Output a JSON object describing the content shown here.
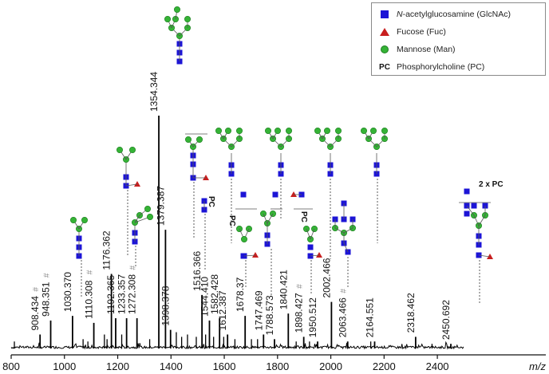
{
  "chart_data": {
    "type": "line",
    "xlabel": "m/z",
    "ylabel": "",
    "xlim": [
      800,
      2500
    ],
    "ylim": [
      0,
      100
    ],
    "x_ticks": [
      800,
      1000,
      1200,
      1400,
      1600,
      1800,
      2000,
      2200,
      2400
    ],
    "peaks": [
      {
        "mz": 908.434,
        "label": "908.434",
        "intensity": 6,
        "marker": "#"
      },
      {
        "mz": 948.351,
        "label": "948.351",
        "intensity": 12,
        "marker": "#"
      },
      {
        "mz": 1030.37,
        "label": "1030.370",
        "intensity": 14,
        "marker": ""
      },
      {
        "mz": 1110.308,
        "label": "1110.308",
        "intensity": 11,
        "marker": "#"
      },
      {
        "mz": 1176.362,
        "label": "1176.362",
        "intensity": 32,
        "marker": ""
      },
      {
        "mz": 1192.365,
        "label": "1192.365",
        "intensity": 13,
        "marker": ""
      },
      {
        "mz": 1233.357,
        "label": "1233.357",
        "intensity": 13,
        "marker": ""
      },
      {
        "mz": 1272.308,
        "label": "1272.308",
        "intensity": 13,
        "marker": "#"
      },
      {
        "mz": 1354.344,
        "label": "1354.344",
        "intensity": 100,
        "marker": ""
      },
      {
        "mz": 1379.387,
        "label": "1379.387",
        "intensity": 51,
        "marker": ""
      },
      {
        "mz": 1398.378,
        "label": "1398.378",
        "intensity": 8,
        "marker": ""
      },
      {
        "mz": 1516.366,
        "label": "1516.366",
        "intensity": 23,
        "marker": ""
      },
      {
        "mz": 1544.41,
        "label": "1544.410",
        "intensity": 12,
        "marker": ""
      },
      {
        "mz": 1582.428,
        "label": "1582.428",
        "intensity": 13,
        "marker": ""
      },
      {
        "mz": 1612.387,
        "label": "1612.387",
        "intensity": 6,
        "marker": ""
      },
      {
        "mz": 1678.37,
        "label": "1678.37",
        "intensity": 14,
        "marker": ""
      },
      {
        "mz": 1747.469,
        "label": "1747.469",
        "intensity": 6,
        "marker": ""
      },
      {
        "mz": 1788.573,
        "label": "1788.573",
        "intensity": 4,
        "marker": ""
      },
      {
        "mz": 1840.421,
        "label": "1840.421",
        "intensity": 15,
        "marker": ""
      },
      {
        "mz": 1898.427,
        "label": "1898.427",
        "intensity": 5,
        "marker": "#"
      },
      {
        "mz": 1950.512,
        "label": "1950.512",
        "intensity": 3,
        "marker": ""
      },
      {
        "mz": 2002.466,
        "label": "2002.466",
        "intensity": 20,
        "marker": ""
      },
      {
        "mz": 2063.466,
        "label": "2063.466",
        "intensity": 3,
        "marker": "#"
      },
      {
        "mz": 2164.551,
        "label": "2164.551",
        "intensity": 3,
        "marker": ""
      },
      {
        "mz": 2318.462,
        "label": "2318.462",
        "intensity": 5,
        "marker": ""
      },
      {
        "mz": 2450.692,
        "label": "2450.692",
        "intensity": 2,
        "marker": ""
      }
    ],
    "glycan_annotations": [
      "PC",
      "PC",
      "PC",
      "2 x PC"
    ]
  },
  "legend": {
    "items": [
      {
        "symbol": "square",
        "prefix": "N",
        "text": "-acetylglucosamine (GlcNAc)",
        "color": "#1c14d6"
      },
      {
        "symbol": "triangle",
        "prefix": "",
        "text": "Fucose (Fuc)",
        "color": "#c81e1e"
      },
      {
        "symbol": "circle",
        "prefix": "",
        "text": "Mannose (Man)",
        "color": "#35b336"
      },
      {
        "symbol": "pc",
        "symbol_text": "PC",
        "prefix": "",
        "text": "Phosphorylcholine (PC)",
        "color": "#111111"
      }
    ]
  },
  "colors": {
    "glcnac": "#1c14d6",
    "fucose": "#c81e1e",
    "mannose": "#35b336",
    "trace": "#000000"
  }
}
